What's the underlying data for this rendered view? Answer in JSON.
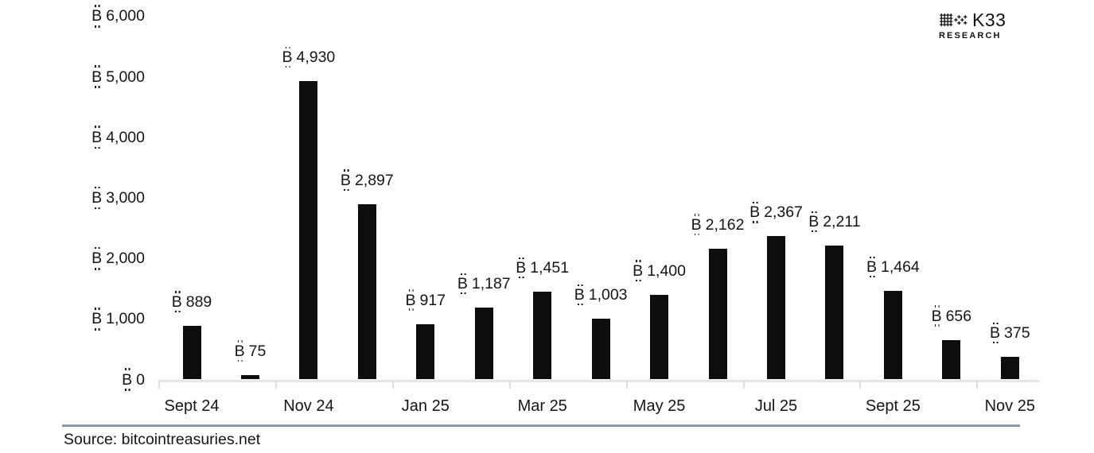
{
  "brand": {
    "name": "K33",
    "sub": "RESEARCH"
  },
  "source": "Source: bitcointreasuries.net",
  "chart_data": {
    "type": "bar",
    "title": "",
    "xlabel": "",
    "ylabel": "",
    "currency_symbol": "₿",
    "values": [
      889,
      75,
      4930,
      2897,
      917,
      1187,
      1451,
      1003,
      1400,
      2162,
      2367,
      2211,
      1464,
      656,
      375
    ],
    "data_labels": [
      "₿ 889",
      "₿ 75",
      "₿ 4,930",
      "₿ 2,897",
      "₿ 917",
      "₿ 1,187",
      "₿ 1,451",
      "₿ 1,003",
      "₿ 1,400",
      "₿ 2,162",
      "₿ 2,367",
      "₿ 2,211",
      "₿ 1,464",
      "₿ 656",
      "₿ 375"
    ],
    "x_tick_labels": [
      "Sept 24",
      "Nov 24",
      "Jan 25",
      "Mar 25",
      "May 25",
      "Jul 25",
      "Sept 25",
      "Nov 25"
    ],
    "x_tick_positions": [
      0,
      2,
      4,
      6,
      8,
      10,
      12,
      14
    ],
    "y_ticks": [
      0,
      1000,
      2000,
      3000,
      4000,
      5000,
      6000
    ],
    "y_tick_labels": [
      "₿ 0",
      "₿ 1,000",
      "₿ 2,000",
      "₿ 3,000",
      "₿ 4,000",
      "₿ 5,000",
      "₿ 6,000"
    ],
    "ylim": [
      0,
      6000
    ],
    "bar_color": "#0d0d0e",
    "grid": false,
    "legend": false
  }
}
